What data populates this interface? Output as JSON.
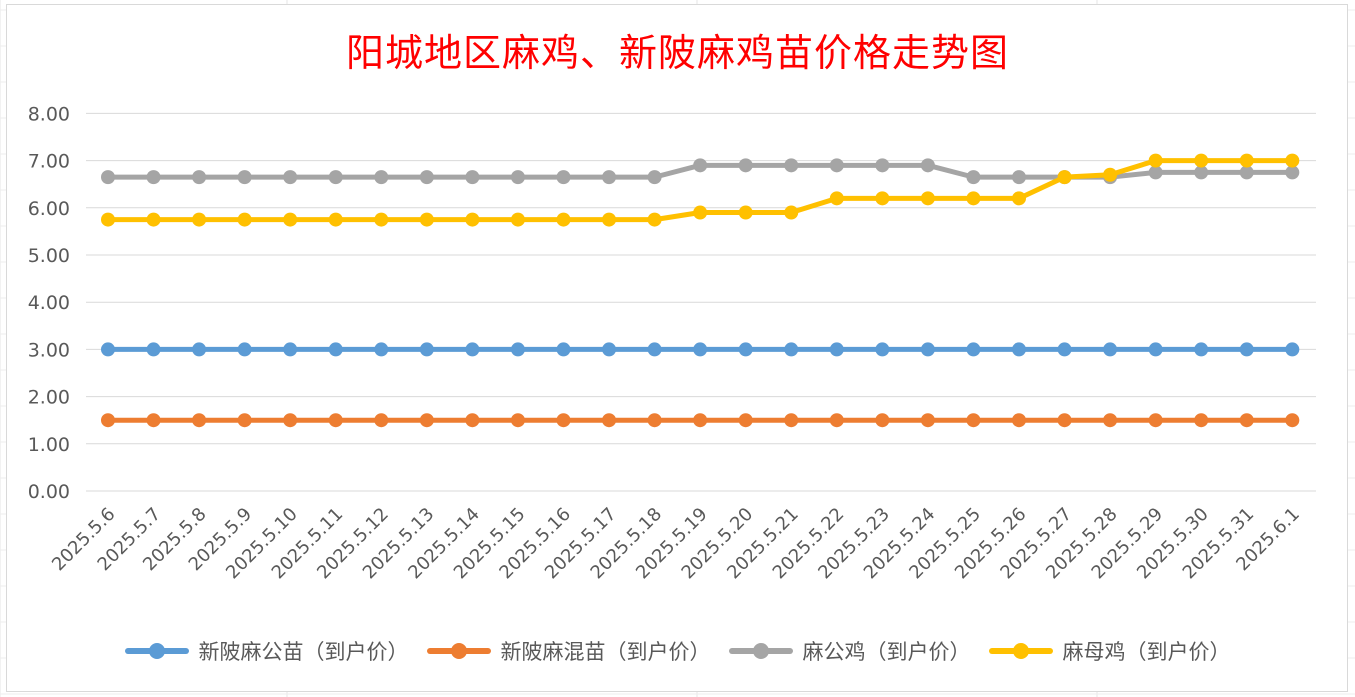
{
  "chart_data": {
    "type": "line",
    "title": "阳城地区麻鸡、新陂麻鸡苗价格走势图",
    "xlabel": "",
    "ylabel": "",
    "ylim": [
      0,
      8
    ],
    "yticks": [
      "0.00",
      "1.00",
      "2.00",
      "3.00",
      "4.00",
      "5.00",
      "6.00",
      "7.00",
      "8.00"
    ],
    "grid": true,
    "legend_position": "bottom",
    "categories": [
      "2025.5.6",
      "2025.5.7",
      "2025.5.8",
      "2025.5.9",
      "2025.5.10",
      "2025.5.11",
      "2025.5.12",
      "2025.5.13",
      "2025.5.14",
      "2025.5.15",
      "2025.5.16",
      "2025.5.17",
      "2025.5.18",
      "2025.5.19",
      "2025.5.20",
      "2025.5.21",
      "2025.5.22",
      "2025.5.23",
      "2025.5.24",
      "2025.5.25",
      "2025.5.26",
      "2025.5.27",
      "2025.5.28",
      "2025.5.29",
      "2025.5.30",
      "2025.5.31",
      "2025.6.1"
    ],
    "series": [
      {
        "name": "新陂麻公苗（到户价）",
        "color": "#5b9bd5",
        "values": [
          3,
          3,
          3,
          3,
          3,
          3,
          3,
          3,
          3,
          3,
          3,
          3,
          3,
          3,
          3,
          3,
          3,
          3,
          3,
          3,
          3,
          3,
          3,
          3,
          3,
          3,
          3
        ]
      },
      {
        "name": "新陂麻混苗（到户价）",
        "color": "#ed7d31",
        "values": [
          1.5,
          1.5,
          1.5,
          1.5,
          1.5,
          1.5,
          1.5,
          1.5,
          1.5,
          1.5,
          1.5,
          1.5,
          1.5,
          1.5,
          1.5,
          1.5,
          1.5,
          1.5,
          1.5,
          1.5,
          1.5,
          1.5,
          1.5,
          1.5,
          1.5,
          1.5,
          1.5
        ]
      },
      {
        "name": "麻公鸡（到户价）",
        "color": "#a5a5a5",
        "values": [
          6.65,
          6.65,
          6.65,
          6.65,
          6.65,
          6.65,
          6.65,
          6.65,
          6.65,
          6.65,
          6.65,
          6.65,
          6.65,
          6.9,
          6.9,
          6.9,
          6.9,
          6.9,
          6.9,
          6.65,
          6.65,
          6.65,
          6.65,
          6.75,
          6.75,
          6.75,
          6.75
        ]
      },
      {
        "name": "麻母鸡（到户价）",
        "color": "#ffc000",
        "values": [
          5.75,
          5.75,
          5.75,
          5.75,
          5.75,
          5.75,
          5.75,
          5.75,
          5.75,
          5.75,
          5.75,
          5.75,
          5.75,
          5.9,
          5.9,
          5.9,
          6.2,
          6.2,
          6.2,
          6.2,
          6.2,
          6.65,
          6.7,
          7,
          7,
          7,
          7
        ]
      }
    ]
  }
}
